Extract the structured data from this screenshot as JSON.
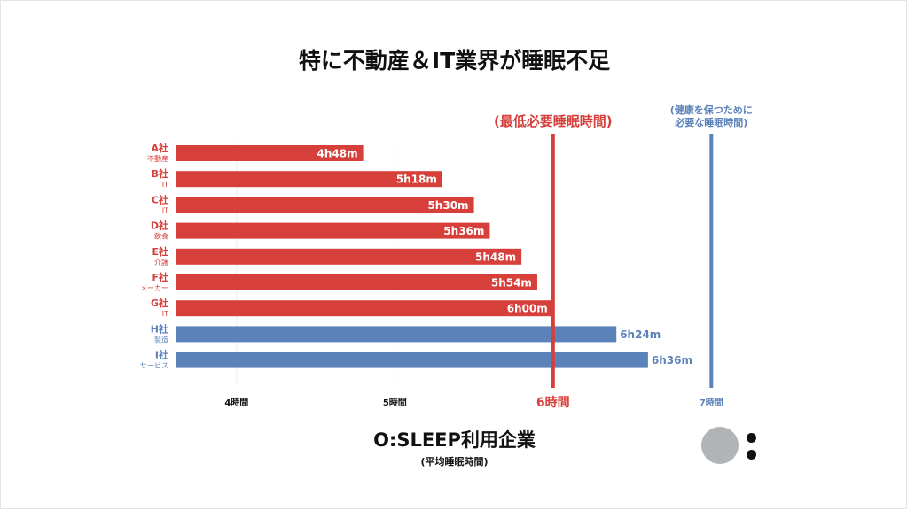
{
  "title": "特に不動産＆IT業界が睡眠不足",
  "x_axis_title": "O:SLEEP利用企業",
  "x_axis_subtitle": "(平均睡眠時間)",
  "colors": {
    "red": "#d63f3a",
    "blue": "#5b82b9",
    "dark": "#111111"
  },
  "chart_data": {
    "type": "bar",
    "orientation": "horizontal",
    "unit": "hours",
    "xlim": [
      3.62,
      7.2
    ],
    "ticks": [
      {
        "value": 4,
        "label": "4時間",
        "color": "#111111",
        "size": 10
      },
      {
        "value": 5,
        "label": "5時間",
        "color": "#111111",
        "size": 10
      },
      {
        "value": 6,
        "label": "6時間",
        "color": "#d63f3a",
        "size": 14
      },
      {
        "value": 7,
        "label": "7時間",
        "color": "#5b82b9",
        "size": 10
      }
    ],
    "bars": [
      {
        "company": "A社",
        "industry": "不動産",
        "value": 4.8,
        "label": "4h48m",
        "color": "#d63f3a"
      },
      {
        "company": "B社",
        "industry": "IT",
        "value": 5.3,
        "label": "5h18m",
        "color": "#d63f3a"
      },
      {
        "company": "C社",
        "industry": "IT",
        "value": 5.5,
        "label": "5h30m",
        "color": "#d63f3a"
      },
      {
        "company": "D社",
        "industry": "飲食",
        "value": 5.6,
        "label": "5h36m",
        "color": "#d63f3a"
      },
      {
        "company": "E社",
        "industry": "介護",
        "value": 5.8,
        "label": "5h48m",
        "color": "#d63f3a"
      },
      {
        "company": "F社",
        "industry": "メーカー",
        "value": 5.9,
        "label": "5h54m",
        "color": "#d63f3a"
      },
      {
        "company": "G社",
        "industry": "IT",
        "value": 6.0,
        "label": "6h00m",
        "color": "#d63f3a"
      },
      {
        "company": "H社",
        "industry": "製造",
        "value": 6.4,
        "label": "6h24m",
        "color": "#5b82b9"
      },
      {
        "company": "I社",
        "industry": "サービス",
        "value": 6.6,
        "label": "6h36m",
        "color": "#5b82b9"
      }
    ],
    "reference_lines": [
      {
        "value": 6,
        "labels": [
          "(最低必要睡眠時間)"
        ],
        "color": "#d63f3a",
        "size": 15
      },
      {
        "value": 7,
        "labels": [
          "(健康を保つために",
          "必要な睡眠時間)"
        ],
        "color": "#5b82b9",
        "size": 11
      }
    ]
  }
}
